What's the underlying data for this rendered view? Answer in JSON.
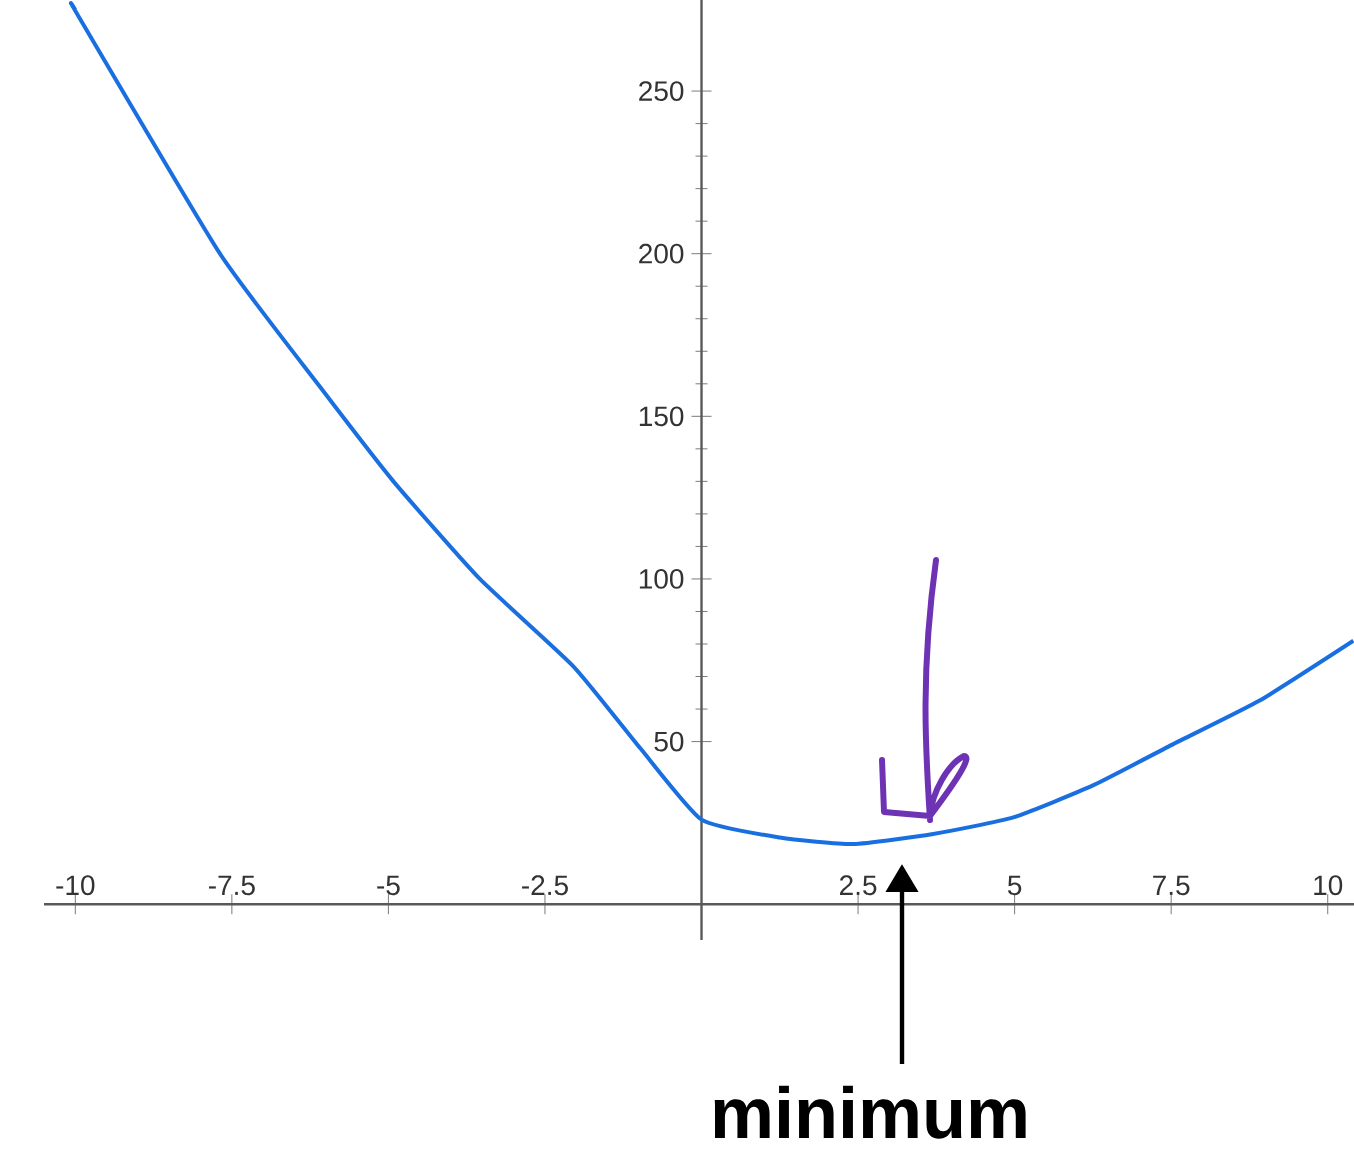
{
  "chart_data": {
    "type": "line",
    "x": [
      -10,
      -9.98,
      -7.69,
      -6.09,
      -4.92,
      -3.54,
      -2.04,
      -0.98,
      0,
      1.25,
      2.42,
      3.7,
      4.98,
      6.26,
      7.54,
      8.92,
      10.41
    ],
    "series": [
      {
        "color": "#1a6fe0",
        "values": [
          275,
          274,
          200,
          159,
          130,
          100,
          73,
          48,
          26,
          20.5,
          18.5,
          21.6,
          26.7,
          36.6,
          49.3,
          62.7,
          81
        ]
      }
    ],
    "xlim": [
      -10.5,
      10.42
    ],
    "ylim": [
      -11,
      278
    ],
    "xticks": [
      -10,
      -7.5,
      -5,
      -2.5,
      2.5,
      5,
      7.5,
      10
    ],
    "yticks": [
      50,
      100,
      150,
      200,
      250
    ],
    "annotations": [
      "minimum"
    ]
  }
}
